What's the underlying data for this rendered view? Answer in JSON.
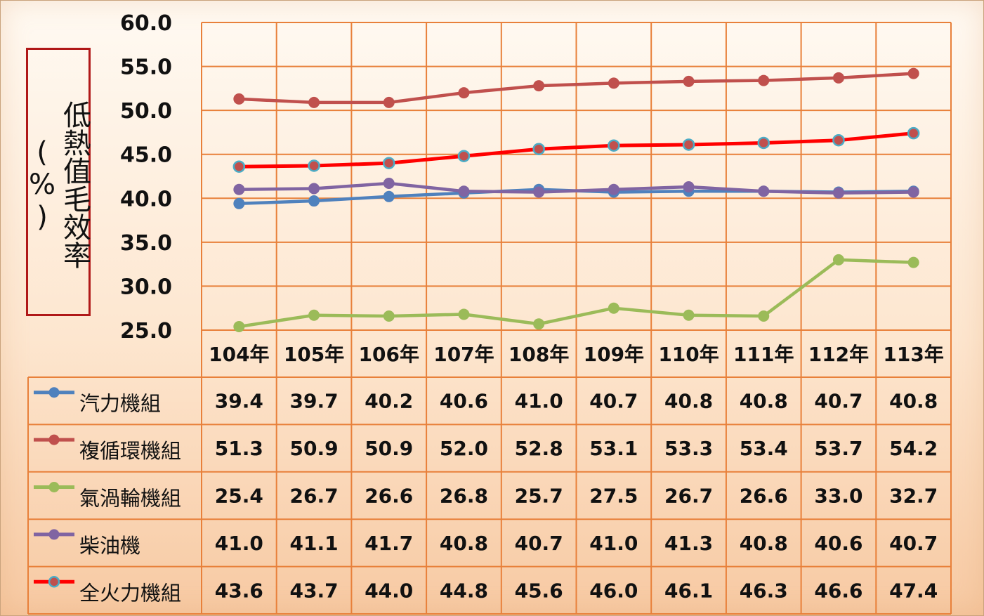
{
  "chart_data": {
    "type": "line",
    "ylabel": "低熱值毛效率(%)",
    "ylim": [
      25.0,
      60.0
    ],
    "yticks": [
      "60.0",
      "55.0",
      "50.0",
      "45.0",
      "40.0",
      "35.0",
      "30.0",
      "25.0"
    ],
    "categories": [
      "104年",
      "105年",
      "106年",
      "107年",
      "108年",
      "109年",
      "110年",
      "111年",
      "112年",
      "113年"
    ],
    "grid": true,
    "legend": "data-table-left",
    "series": [
      {
        "name": "汽力機組",
        "color": "#4f81bd",
        "values": [
          39.4,
          39.7,
          40.2,
          40.6,
          41.0,
          40.7,
          40.8,
          40.8,
          40.7,
          40.8
        ],
        "labels": [
          "39.4",
          "39.7",
          "40.2",
          "40.6",
          "41.0",
          "40.7",
          "40.8",
          "40.8",
          "40.7",
          "40.8"
        ]
      },
      {
        "name": "複循環機組",
        "color": "#c0504d",
        "values": [
          51.3,
          50.9,
          50.9,
          52.0,
          52.8,
          53.1,
          53.3,
          53.4,
          53.7,
          54.2
        ],
        "labels": [
          "51.3",
          "50.9",
          "50.9",
          "52.0",
          "52.8",
          "53.1",
          "53.3",
          "53.4",
          "53.7",
          "54.2"
        ]
      },
      {
        "name": "氣渦輪機組",
        "color": "#9bbb59",
        "values": [
          25.4,
          26.7,
          26.6,
          26.8,
          25.7,
          27.5,
          26.7,
          26.6,
          33.0,
          32.7
        ],
        "labels": [
          "25.4",
          "26.7",
          "26.6",
          "26.8",
          "25.7",
          "27.5",
          "26.7",
          "26.6",
          "33.0",
          "32.7"
        ]
      },
      {
        "name": "柴油機",
        "color": "#8064a2",
        "values": [
          41.0,
          41.1,
          41.7,
          40.8,
          40.7,
          41.0,
          41.3,
          40.8,
          40.6,
          40.7
        ],
        "labels": [
          "41.0",
          "41.1",
          "41.7",
          "40.8",
          "40.7",
          "41.0",
          "41.3",
          "40.8",
          "40.6",
          "40.7"
        ]
      },
      {
        "name": "全火力機組",
        "color": "#ff0000",
        "marker_color": "#4bacc6",
        "values": [
          43.6,
          43.7,
          44.0,
          44.8,
          45.6,
          46.0,
          46.1,
          46.3,
          46.6,
          47.4
        ],
        "labels": [
          "43.6",
          "43.7",
          "44.0",
          "44.8",
          "45.6",
          "46.0",
          "46.1",
          "46.3",
          "46.6",
          "47.4"
        ]
      }
    ]
  }
}
